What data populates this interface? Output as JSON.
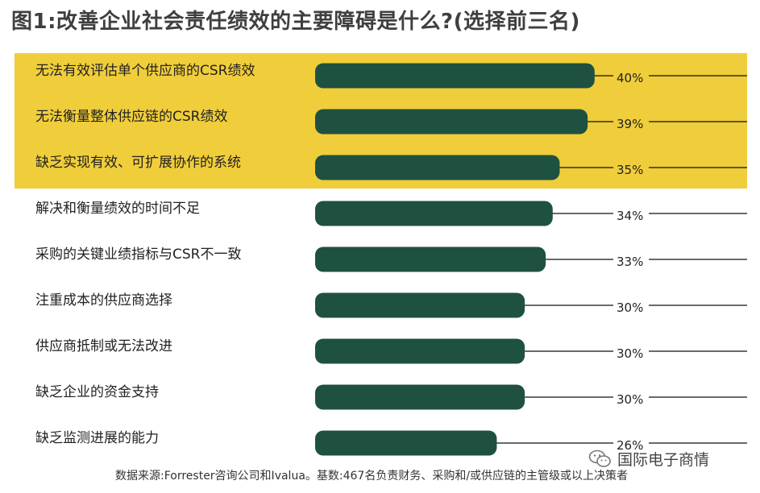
{
  "title": "图1:改善企业社会责任绩效的主要障碍是什么?(选择前三名)",
  "colors": {
    "highlight": "#f0cd3a",
    "bar": "#1f5140",
    "line": "#111111"
  },
  "chart_data": {
    "type": "bar",
    "orientation": "horizontal",
    "title": "图1:改善企业社会责任绩效的主要障碍是什么?(选择前三名)",
    "unit": "%",
    "highlighted_top_n": 3,
    "categories": [
      "无法有效评估单个供应商的CSR绩效",
      "无法衡量整体供应链的CSR绩效",
      "缺乏实现有效、可扩展协作的系统",
      "解决和衡量绩效的时间不足",
      "采购的关键业绩指标与CSR不一致",
      "注重成本的供应商选择",
      "供应商抵制或无法改进",
      "缺乏企业的资金支持",
      "缺乏监测进展的能力"
    ],
    "values": [
      40,
      39,
      35,
      34,
      33,
      30,
      30,
      30,
      26
    ],
    "value_labels": [
      "40%",
      "39%",
      "35%",
      "34%",
      "33%",
      "30%",
      "30%",
      "30%",
      "26%"
    ]
  },
  "footer": "数据来源:Forrester咨询公司和Ivalua。基数:467名负责财务、采购和/或供应链的主管级或以上决策者",
  "watermark": {
    "text": "国际电子商情",
    "icon": "wechat-icon"
  }
}
